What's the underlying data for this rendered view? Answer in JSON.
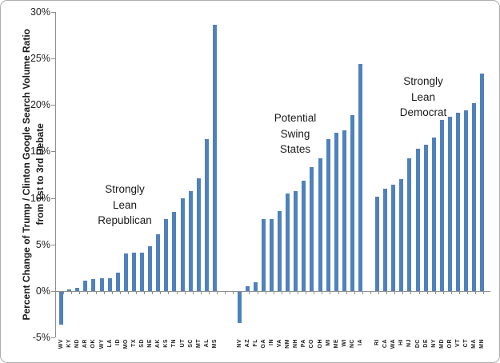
{
  "chart_data": {
    "type": "bar",
    "title": "",
    "ylabel_line1": "Percent Change of Trump / Clinton Google Search Volume Ratio",
    "ylabel_line2": "from 1st to 3rd Debate",
    "xlabel": "",
    "ylim": [
      -5,
      30
    ],
    "grid": false,
    "legend": "none",
    "bar_color": "#4F81BD",
    "axis_color": "#8e8e8e",
    "y_ticks": [
      {
        "value": 30,
        "label": "30%"
      },
      {
        "value": 25,
        "label": "25%"
      },
      {
        "value": 20,
        "label": "20%"
      },
      {
        "value": 15,
        "label": "15%"
      },
      {
        "value": 10,
        "label": "10%"
      },
      {
        "value": 5,
        "label": "5%"
      },
      {
        "value": 0,
        "label": "0%"
      },
      {
        "value": -5,
        "label": "-5%"
      }
    ],
    "groups": [
      {
        "annotation": [
          "Strongly",
          "Lean",
          "Republican"
        ],
        "categories": [
          "WV",
          "KY",
          "ND",
          "AR",
          "OK",
          "WY",
          "LA",
          "ID",
          "MO",
          "TX",
          "SD",
          "NE",
          "AK",
          "KS",
          "TN",
          "UT",
          "SC",
          "MT",
          "AL",
          "MS"
        ],
        "values": [
          -3.5,
          0.2,
          0.3,
          1.1,
          1.3,
          1.4,
          1.4,
          2.0,
          4.0,
          4.1,
          4.1,
          4.8,
          6.1,
          7.7,
          8.5,
          10.0,
          10.7,
          12.1,
          16.3,
          28.6
        ]
      },
      {
        "annotation": [
          "Potential",
          "Swing",
          "States"
        ],
        "categories": [
          "NV",
          "AZ",
          "FL",
          "GA",
          "IN",
          "VA",
          "NM",
          "NH",
          "PA",
          "CO",
          "OH",
          "MI",
          "ME",
          "WI",
          "NC",
          "IA"
        ],
        "values": [
          -3.4,
          0.5,
          0.9,
          7.7,
          7.7,
          8.6,
          10.5,
          10.7,
          11.9,
          13.3,
          14.3,
          16.3,
          17.0,
          17.3,
          18.9,
          24.4
        ]
      },
      {
        "annotation": [
          "Strongly",
          "Lean",
          "Democrat"
        ],
        "categories": [
          "RI",
          "CA",
          "WA",
          "HI",
          "NJ",
          "DC",
          "DE",
          "NY",
          "MD",
          "OR",
          "VT",
          "CT",
          "MA",
          "MN"
        ],
        "values": [
          10.1,
          11.0,
          11.4,
          12.0,
          14.3,
          15.3,
          15.7,
          16.5,
          18.4,
          18.7,
          19.2,
          19.4,
          20.2,
          23.4
        ]
      }
    ]
  }
}
